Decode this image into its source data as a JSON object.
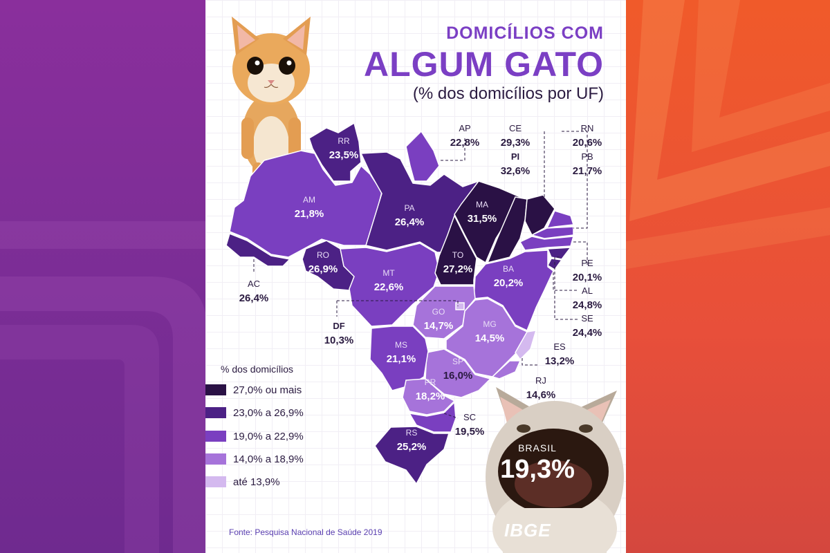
{
  "title": {
    "line1": "DOMICÍLIOS COM",
    "line2": "ALGUM GATO",
    "subtitle": "(% dos domicílios por UF)"
  },
  "legend": {
    "title": "% dos domicílios",
    "items": [
      {
        "label": "27,0% ou mais",
        "color": "#2a1145"
      },
      {
        "label": "23,0% a 26,9%",
        "color": "#4c2185"
      },
      {
        "label": "19,0% a 22,9%",
        "color": "#7a3fc0"
      },
      {
        "label": "14,0% a 18,9%",
        "color": "#a673da"
      },
      {
        "label": "até 13,9%",
        "color": "#d4b9ef"
      }
    ]
  },
  "states": {
    "RR": {
      "code": "RR",
      "value": "23,5%",
      "pct": 23.5
    },
    "AP": {
      "code": "AP",
      "value": "22,8%",
      "pct": 22.8
    },
    "AM": {
      "code": "AM",
      "value": "21,8%",
      "pct": 21.8
    },
    "PA": {
      "code": "PA",
      "value": "26,4%",
      "pct": 26.4
    },
    "AC": {
      "code": "AC",
      "value": "26,4%",
      "pct": 26.4
    },
    "RO": {
      "code": "RO",
      "value": "26,9%",
      "pct": 26.9
    },
    "MT": {
      "code": "MT",
      "value": "22,6%",
      "pct": 22.6
    },
    "MA": {
      "code": "MA",
      "value": "31,5%",
      "pct": 31.5
    },
    "PI": {
      "code": "PI",
      "value": "32,6%",
      "pct": 32.6
    },
    "CE": {
      "code": "CE",
      "value": "29,3%",
      "pct": 29.3
    },
    "RN": {
      "code": "RN",
      "value": "20,6%",
      "pct": 20.6
    },
    "PB": {
      "code": "PB",
      "value": "21,7%",
      "pct": 21.7
    },
    "PE": {
      "code": "PE",
      "value": "20,1%",
      "pct": 20.1
    },
    "AL": {
      "code": "AL",
      "value": "24,8%",
      "pct": 24.8
    },
    "SE": {
      "code": "SE",
      "value": "24,4%",
      "pct": 24.4
    },
    "BA": {
      "code": "BA",
      "value": "20,2%",
      "pct": 20.2
    },
    "TO": {
      "code": "TO",
      "value": "27,2%",
      "pct": 27.2
    },
    "GO": {
      "code": "GO",
      "value": "14,7%",
      "pct": 14.7
    },
    "DF": {
      "code": "DF",
      "value": "10,3%",
      "pct": 10.3
    },
    "MG": {
      "code": "MG",
      "value": "14,5%",
      "pct": 14.5
    },
    "ES": {
      "code": "ES",
      "value": "13,2%",
      "pct": 13.2
    },
    "RJ": {
      "code": "RJ",
      "value": "14,6%",
      "pct": 14.6
    },
    "SP": {
      "code": "SP",
      "value": "16,0%",
      "pct": 16.0
    },
    "MS": {
      "code": "MS",
      "value": "21,1%",
      "pct": 21.1
    },
    "PR": {
      "code": "PR",
      "value": "18,2%",
      "pct": 18.2
    },
    "SC": {
      "code": "SC",
      "value": "19,5%",
      "pct": 19.5
    },
    "RS": {
      "code": "RS",
      "value": "25,2%",
      "pct": 25.2
    }
  },
  "brasil": {
    "label": "BRASIL",
    "value": "19,3%"
  },
  "source": "Fonte: Pesquisa Nacional de Saúde 2019",
  "brand": "IBGE",
  "icons": {
    "kitten": "orange-kitten-photo",
    "cat": "singing-cat-photo",
    "logo": "ibge-logo"
  }
}
